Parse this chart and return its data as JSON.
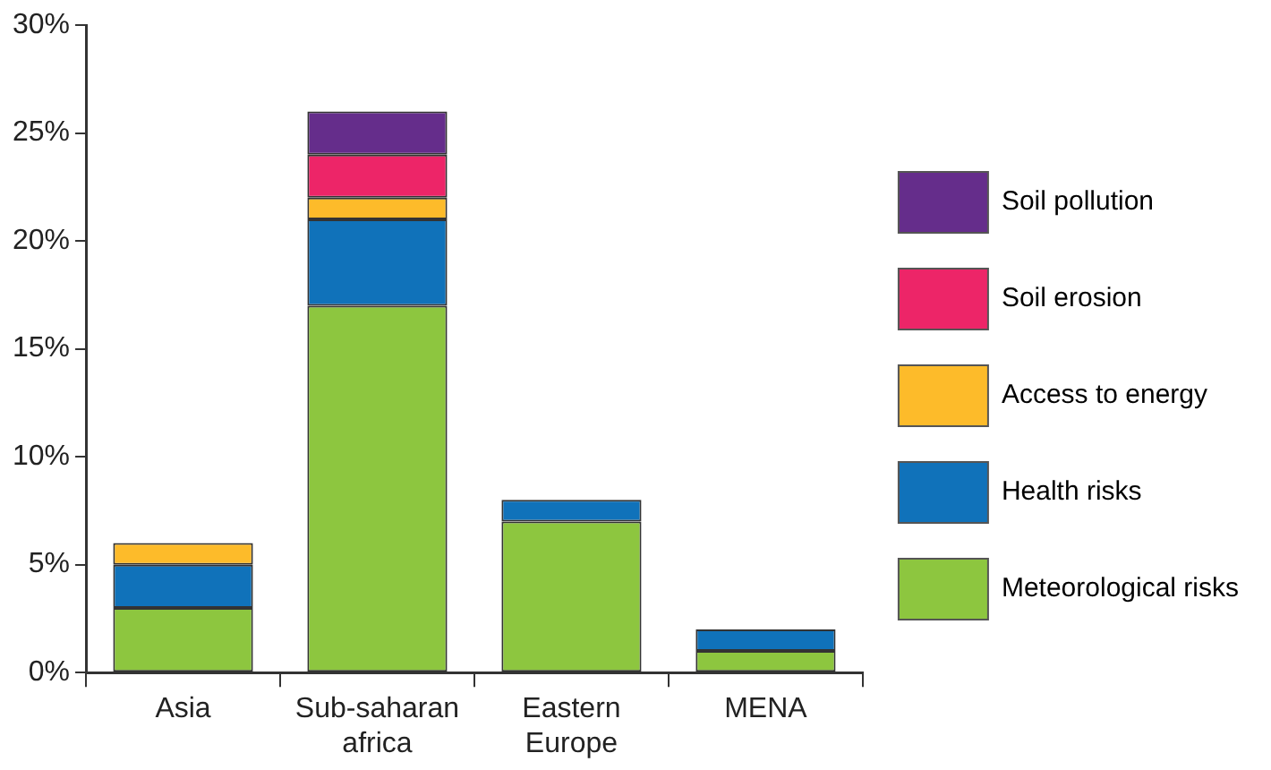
{
  "chart_data": {
    "type": "bar",
    "stacked": true,
    "categories": [
      "Asia",
      "Sub-saharan africa",
      "Eastern Europe",
      "MENA"
    ],
    "series": [
      {
        "name": "Meteorological risks",
        "color": "#8dc63f",
        "values": [
          3,
          17,
          7,
          1
        ]
      },
      {
        "name": "Health risks",
        "color": "#1072ba",
        "values": [
          2,
          4,
          1,
          1
        ]
      },
      {
        "name": "Access to energy",
        "color": "#fdbb2a",
        "values": [
          1,
          1,
          0,
          0
        ]
      },
      {
        "name": "Soil erosion",
        "color": "#ed2568",
        "values": [
          0,
          2,
          0,
          0
        ]
      },
      {
        "name": "Soil pollution",
        "color": "#652d8b",
        "values": [
          0,
          2,
          0,
          0
        ]
      }
    ],
    "ylim": [
      0,
      30
    ],
    "yticks": [
      {
        "value": 0,
        "label": "0%"
      },
      {
        "value": 5,
        "label": "5%"
      },
      {
        "value": 10,
        "label": "10%"
      },
      {
        "value": 15,
        "label": "15%"
      },
      {
        "value": 20,
        "label": "20%"
      },
      {
        "value": 25,
        "label": "25%"
      },
      {
        "value": 30,
        "label": "30%"
      }
    ],
    "grid": false,
    "legend": "right"
  }
}
